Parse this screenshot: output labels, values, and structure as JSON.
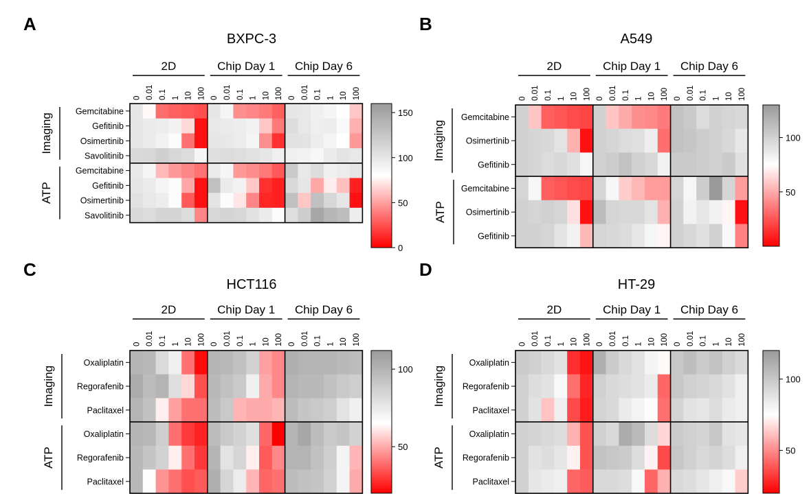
{
  "figure": {
    "colorscale": {
      "low": "#ff0000",
      "mid": "#ffffff",
      "high": "#9a9a9a"
    }
  },
  "chart_data": [
    {
      "type": "heatmap",
      "panel_letter": "A",
      "title": "BXPC-3",
      "groups": [
        "2D",
        "Chip Day 1",
        "Chip Day 6"
      ],
      "concentrations": [
        "0",
        "0.01",
        "0.1",
        "1",
        "10",
        "100"
      ],
      "sections": [
        {
          "label": "Imaging",
          "drugs": [
            "Gemcitabine",
            "Gefitinib",
            "Osimertinib",
            "Savolitinib"
          ]
        },
        {
          "label": "ATP",
          "drugs": [
            "Gemcitabine",
            "Gefitinib",
            "Osimertinib",
            "Savolitinib"
          ]
        }
      ],
      "colorbar": {
        "min": 0,
        "mid": 80,
        "max": 160,
        "ticks": [
          "150",
          "100",
          "50",
          "0"
        ],
        "tick_values": [
          150,
          100,
          50,
          0
        ]
      },
      "values": [
        [
          100,
          78,
          34,
          30,
          28,
          25,
          100,
          88,
          45,
          42,
          38,
          30,
          100,
          98,
          92,
          88,
          80,
          62
        ],
        [
          100,
          96,
          94,
          90,
          68,
          5,
          98,
          96,
          94,
          90,
          62,
          38,
          108,
          98,
          93,
          95,
          85,
          55
        ],
        [
          100,
          96,
          90,
          82,
          35,
          5,
          100,
          98,
          95,
          88,
          45,
          15,
          104,
          102,
          94,
          88,
          80,
          48
        ],
        [
          110,
          112,
          118,
          112,
          108,
          88,
          105,
          108,
          106,
          104,
          100,
          93,
          92,
          90,
          86,
          96,
          102,
          98
        ]
      ],
      "values_atp": [
        [
          98,
          88,
          58,
          48,
          42,
          36,
          96,
          88,
          48,
          44,
          38,
          28,
          122,
          98,
          108,
          92,
          95,
          100
        ],
        [
          100,
          96,
          88,
          82,
          52,
          5,
          130,
          96,
          90,
          62,
          15,
          10,
          110,
          100,
          52,
          74,
          60,
          10
        ],
        [
          104,
          98,
          94,
          82,
          28,
          5,
          102,
          82,
          72,
          42,
          12,
          10,
          130,
          62,
          130,
          112,
          100,
          5
        ],
        [
          110,
          108,
          114,
          114,
          108,
          42,
          112,
          114,
          112,
          104,
          96,
          82,
          106,
          120,
          150,
          138,
          132,
          94
        ]
      ]
    },
    {
      "type": "heatmap",
      "panel_letter": "B",
      "title": "A549",
      "groups": [
        "2D",
        "Chip Day 1",
        "Chip Day 6"
      ],
      "concentrations": [
        "0",
        "0.01",
        "0.1",
        "1",
        "10",
        "100"
      ],
      "sections": [
        {
          "label": "Imaging",
          "drugs": [
            "Gemcitabine",
            "Osimertinib",
            "Gefitinib"
          ]
        },
        {
          "label": "ATP",
          "drugs": [
            "Gemcitabine",
            "Osimertinib",
            "Gefitinib"
          ]
        }
      ],
      "colorbar": {
        "min": 0,
        "mid": 75,
        "max": 130,
        "ticks": [
          "100",
          "50"
        ],
        "tick_values": [
          100,
          50
        ]
      },
      "values": [
        [
          100,
          58,
          28,
          25,
          22,
          20,
          100,
          58,
          50,
          42,
          40,
          36,
          108,
          104,
          94,
          100,
          98,
          96
        ],
        [
          100,
          98,
          96,
          90,
          52,
          5,
          100,
          98,
          94,
          92,
          84,
          32,
          108,
          106,
          102,
          100,
          96,
          88
        ],
        [
          100,
          98,
          94,
          96,
          92,
          80,
          100,
          102,
          108,
          100,
          96,
          82,
          104,
          104,
          102,
          100,
          104,
          92
        ]
      ],
      "values_atp": [
        [
          98,
          80,
          28,
          25,
          22,
          20,
          98,
          80,
          60,
          54,
          46,
          46,
          98,
          80,
          102,
          130,
          98,
          46
        ],
        [
          100,
          98,
          100,
          98,
          66,
          5,
          112,
          98,
          96,
          96,
          90,
          52,
          100,
          82,
          88,
          82,
          72,
          5
        ],
        [
          100,
          100,
          98,
          90,
          82,
          54,
          98,
          96,
          94,
          88,
          80,
          72,
          100,
          96,
          92,
          100,
          78,
          38
        ]
      ]
    },
    {
      "type": "heatmap",
      "panel_letter": "C",
      "title": "HCT116",
      "groups": [
        "2D",
        "Chip Day 1",
        "Chip Day 6"
      ],
      "concentrations": [
        "0",
        "0.01",
        "0.1",
        "1",
        "10",
        "100"
      ],
      "sections": [
        {
          "label": "Imaging",
          "drugs": [
            "Oxaliplatin",
            "Regorafenib",
            "Paclitaxel"
          ]
        },
        {
          "label": "ATP",
          "drugs": [
            "Oxaliplatin",
            "Regorafenib",
            "Paclitaxel"
          ]
        }
      ],
      "colorbar": {
        "min": 20,
        "mid": 65,
        "max": 112,
        "ticks": [
          "100",
          "50"
        ],
        "tick_values": [
          100,
          50
        ]
      },
      "values": [
        [
          100,
          98,
          82,
          72,
          40,
          22,
          100,
          98,
          94,
          86,
          48,
          44,
          102,
          100,
          100,
          100,
          98,
          96
        ],
        [
          104,
          96,
          100,
          80,
          58,
          34,
          98,
          94,
          90,
          72,
          50,
          44,
          100,
          98,
          98,
          94,
          90,
          88
        ],
        [
          100,
          94,
          62,
          48,
          40,
          40,
          96,
          90,
          52,
          50,
          50,
          52,
          96,
          92,
          90,
          88,
          78,
          72
        ]
      ],
      "values_atp": [
        [
          100,
          98,
          88,
          40,
          30,
          26,
          96,
          90,
          86,
          80,
          38,
          20,
          100,
          106,
          96,
          90,
          92,
          86
        ],
        [
          98,
          92,
          86,
          62,
          40,
          30,
          100,
          78,
          84,
          62,
          36,
          44,
          100,
          100,
          94,
          88,
          70,
          52
        ],
        [
          98,
          66,
          46,
          40,
          34,
          36,
          102,
          84,
          74,
          52,
          38,
          40,
          96,
          94,
          92,
          86,
          70,
          50
        ]
      ]
    },
    {
      "type": "heatmap",
      "panel_letter": "D",
      "title": "HT-29",
      "groups": [
        "2D",
        "Chip Day 1",
        "Chip Day 6"
      ],
      "concentrations": [
        "0",
        "0.01",
        "0.1",
        "1",
        "10",
        "100"
      ],
      "sections": [
        {
          "label": "Imaging",
          "drugs": [
            "Oxaliplatin",
            "Regorafenib",
            "Paclitaxel"
          ]
        },
        {
          "label": "ATP",
          "drugs": [
            "Oxaliplatin",
            "Regorafenib",
            "Paclitaxel"
          ]
        }
      ],
      "colorbar": {
        "min": 20,
        "mid": 75,
        "max": 120,
        "ticks": [
          "100",
          "50"
        ],
        "tick_values": [
          100,
          50
        ]
      },
      "values": [
        [
          98,
          96,
          92,
          88,
          30,
          24,
          110,
          98,
          92,
          88,
          80,
          74,
          100,
          104,
          98,
          102,
          96,
          92
        ],
        [
          96,
          90,
          88,
          78,
          44,
          28,
          96,
          92,
          90,
          88,
          84,
          42,
          100,
          96,
          94,
          92,
          88,
          82
        ],
        [
          96,
          88,
          62,
          82,
          36,
          26,
          94,
          92,
          84,
          80,
          76,
          44,
          94,
          88,
          86,
          90,
          84,
          82
        ]
      ],
      "values_atp": [
        [
          96,
          94,
          92,
          90,
          58,
          38,
          96,
          92,
          112,
          106,
          90,
          66,
          98,
          96,
          94,
          100,
          88,
          86
        ],
        [
          96,
          88,
          90,
          86,
          72,
          38,
          102,
          100,
          98,
          90,
          72,
          36,
          100,
          96,
          92,
          94,
          90,
          82
        ],
        [
          96,
          86,
          84,
          82,
          42,
          40,
          92,
          92,
          90,
          78,
          42,
          58,
          92,
          90,
          86,
          82,
          78,
          64
        ]
      ]
    }
  ]
}
